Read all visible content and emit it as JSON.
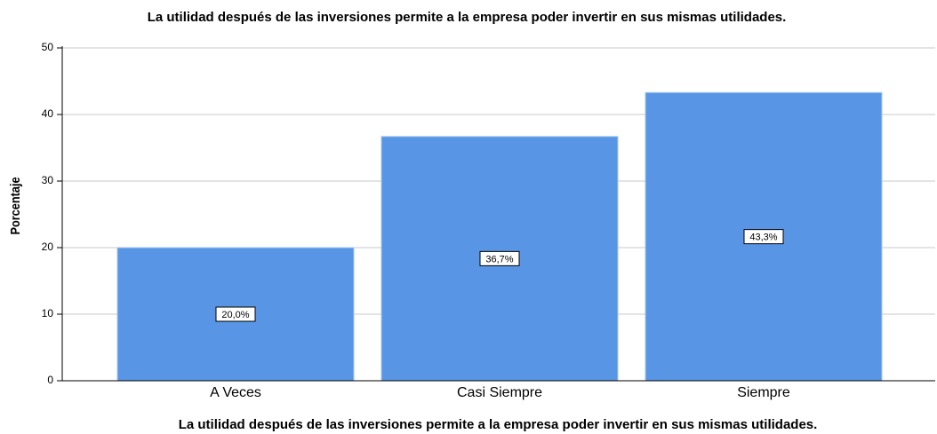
{
  "chart_data": {
    "type": "bar",
    "title": "La utilidad después de las inversiones permite a la empresa poder invertir en sus mismas utilidades.",
    "x_label": "La utilidad después de las inversiones permite a la empresa poder invertir en sus mismas utilidades.",
    "y_label": "Porcentaje",
    "categories": [
      "A Veces",
      "Casi Siempre",
      "Siempre"
    ],
    "values": [
      20.0,
      36.7,
      43.3
    ],
    "value_labels": [
      "20,0%",
      "36,7%",
      "43,3%"
    ],
    "color": "#5896e5",
    "ylim": [
      0,
      50
    ],
    "yticks": [
      0,
      10,
      20,
      30,
      40,
      50
    ],
    "grid": true
  }
}
